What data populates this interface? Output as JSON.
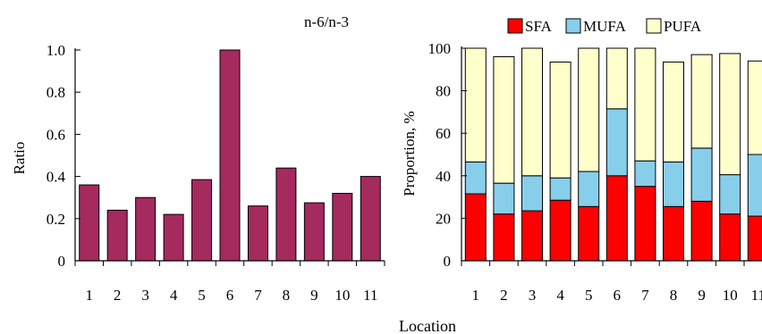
{
  "figure": {
    "shared_xlabel": "Location"
  },
  "chart_data": [
    {
      "type": "bar",
      "title": "n-6/n-3",
      "xlabel": "",
      "ylabel": "Ratio",
      "ylim": [
        0,
        1.0
      ],
      "yticks": [
        "0",
        "0.2",
        "0.4",
        "0.6",
        "0.8",
        "1.0"
      ],
      "categories": [
        "1",
        "2",
        "3",
        "4",
        "5",
        "6",
        "7",
        "8",
        "9",
        "10",
        "11"
      ],
      "values": [
        0.36,
        0.24,
        0.3,
        0.22,
        0.385,
        1.0,
        0.26,
        0.44,
        0.275,
        0.32,
        0.4
      ],
      "bar_color": "#a52a5e"
    },
    {
      "type": "stacked-bar",
      "title": "",
      "xlabel": "",
      "ylabel": "Proportion, %",
      "ylim": [
        0,
        100
      ],
      "yticks": [
        "0",
        "20",
        "40",
        "60",
        "80",
        "100"
      ],
      "categories": [
        "1",
        "2",
        "3",
        "4",
        "5",
        "6",
        "7",
        "8",
        "9",
        "10",
        "11"
      ],
      "legend_position": "top",
      "series": [
        {
          "name": "SFA",
          "color": "#ff0000",
          "values": [
            31.5,
            22,
            23.5,
            28.5,
            25.5,
            40,
            35,
            25.5,
            28,
            22,
            21
          ]
        },
        {
          "name": "MUFA",
          "color": "#87ceeb",
          "values": [
            15,
            14.5,
            16.5,
            10.5,
            16.5,
            31.5,
            12,
            21,
            25,
            18.5,
            29
          ]
        },
        {
          "name": "PUFA",
          "color": "#ffffcc",
          "values": [
            53.5,
            59.5,
            60,
            54.5,
            58,
            28.5,
            53,
            47,
            44,
            57,
            44
          ]
        }
      ]
    }
  ]
}
